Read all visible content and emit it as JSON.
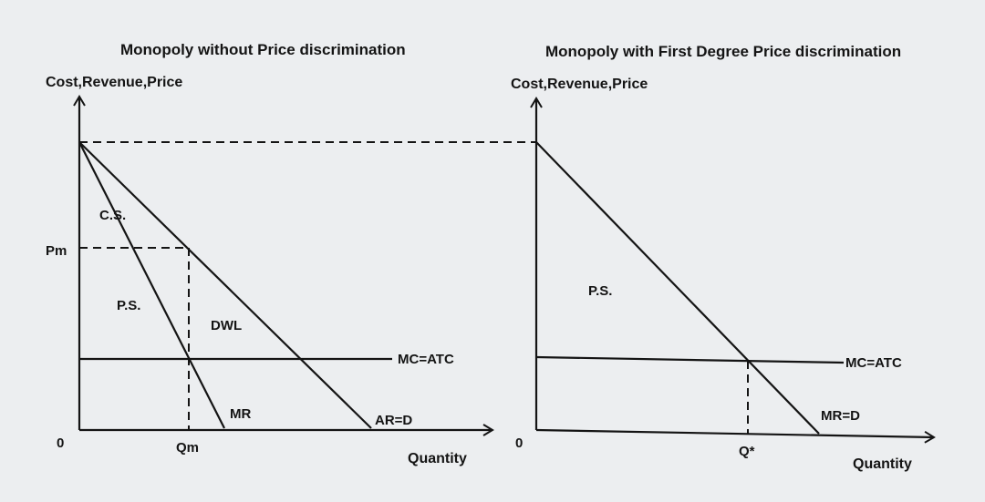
{
  "left_panel": {
    "title": "Monopoly without Price discrimination",
    "y_axis_label": "Cost,Revenue,Price",
    "x_axis_label": "Quantity",
    "origin_label": "0",
    "price_label": "Pm",
    "quantity_label": "Qm",
    "consumer_surplus_label": "C.S.",
    "producer_surplus_label": "P.S.",
    "deadweight_loss_label": "DWL",
    "cost_curve_label": "MC=ATC",
    "marginal_revenue_label": "MR",
    "demand_label": "AR=D"
  },
  "right_panel": {
    "title": "Monopoly with First Degree Price discrimination",
    "y_axis_label": "Cost,Revenue,Price",
    "x_axis_label": "Quantity",
    "origin_label": "0",
    "quantity_label": "Q*",
    "producer_surplus_label": "P.S.",
    "cost_curve_label": "MC=ATC",
    "demand_label": "MR=D"
  }
}
